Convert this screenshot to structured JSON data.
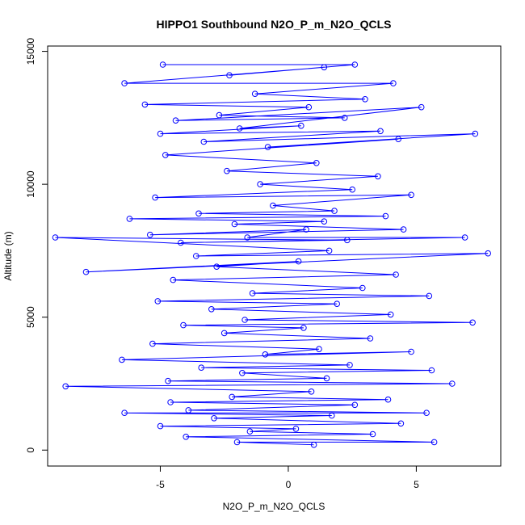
{
  "chart_data": {
    "type": "scatter",
    "title": "HIPPO1 Southbound N2O_P_m_N2O_QCLS",
    "xlabel": "N2O_P_m_N2O_QCLS",
    "ylabel": "Altitude (m)",
    "xlim": [
      -9.4,
      8.3
    ],
    "ylim": [
      -600,
      15200
    ],
    "x_ticks": [
      -5,
      0,
      5
    ],
    "x_tick_labels": [
      "-5",
      "0",
      "5"
    ],
    "y_ticks": [
      0,
      5000,
      10000,
      15000
    ],
    "y_tick_labels": [
      "0",
      "5000",
      "10000",
      "15000"
    ],
    "connected": true,
    "point_symbol": "open-circle",
    "color": "#0000ff",
    "series": [
      {
        "name": "N2O_P_m_N2O_QCLS",
        "x": [
          -4.9,
          2.6,
          -2.3,
          1.4,
          -6.4,
          4.1,
          -1.3,
          3.0,
          -5.6,
          0.8,
          -2.7,
          2.2,
          -4.4,
          5.2,
          -1.9,
          0.5,
          -5.0,
          3.6,
          -3.3,
          7.3,
          -0.8,
          4.3,
          -4.8,
          1.1,
          -2.4,
          3.5,
          -1.1,
          2.5,
          -5.2,
          4.8,
          -0.6,
          1.8,
          -3.5,
          3.8,
          -6.2,
          1.4,
          -2.1,
          4.5,
          -5.4,
          0.7,
          -1.6,
          6.9,
          -4.2,
          2.3,
          -9.1,
          1.6,
          -3.6,
          7.8,
          -7.9,
          0.4,
          -2.8,
          4.2,
          -4.5,
          2.9,
          -1.4,
          5.5,
          -5.1,
          1.9,
          -3.0,
          4.0,
          -1.7,
          7.2,
          -4.1,
          0.6,
          -2.5,
          3.2,
          -5.3,
          1.2,
          -0.9,
          4.8,
          -6.5,
          2.4,
          -3.4,
          5.6,
          -1.8,
          1.5,
          -4.7,
          6.4,
          -8.7,
          0.9,
          -2.2,
          3.9,
          -4.6,
          2.6,
          -3.9,
          5.4,
          -6.4,
          1.7,
          -2.9,
          4.4,
          -5.0,
          0.3,
          -1.5,
          3.3,
          -4.0,
          5.7,
          -2.0,
          1.0
        ],
        "y": [
          14500,
          14500,
          14100,
          14400,
          13800,
          13800,
          13400,
          13200,
          13000,
          12900,
          12600,
          12500,
          12400,
          12900,
          12100,
          12200,
          11900,
          12000,
          11600,
          11900,
          11400,
          11700,
          11100,
          10800,
          10500,
          10300,
          10000,
          9800,
          9500,
          9600,
          9200,
          9000,
          8900,
          8800,
          8700,
          8600,
          8500,
          8300,
          8100,
          8300,
          8000,
          8000,
          7800,
          7900,
          8000,
          7500,
          7300,
          7400,
          6700,
          7100,
          6900,
          6600,
          6400,
          6100,
          5900,
          5800,
          5600,
          5500,
          5300,
          5100,
          4900,
          4800,
          4700,
          4600,
          4400,
          4200,
          4000,
          3800,
          3600,
          3700,
          3400,
          3200,
          3100,
          3000,
          2900,
          2700,
          2600,
          2500,
          2400,
          2200,
          2000,
          1900,
          1800,
          1700,
          1500,
          1400,
          1400,
          1300,
          1200,
          1000,
          900,
          800,
          700,
          600,
          500,
          300,
          300,
          200
        ]
      }
    ]
  }
}
